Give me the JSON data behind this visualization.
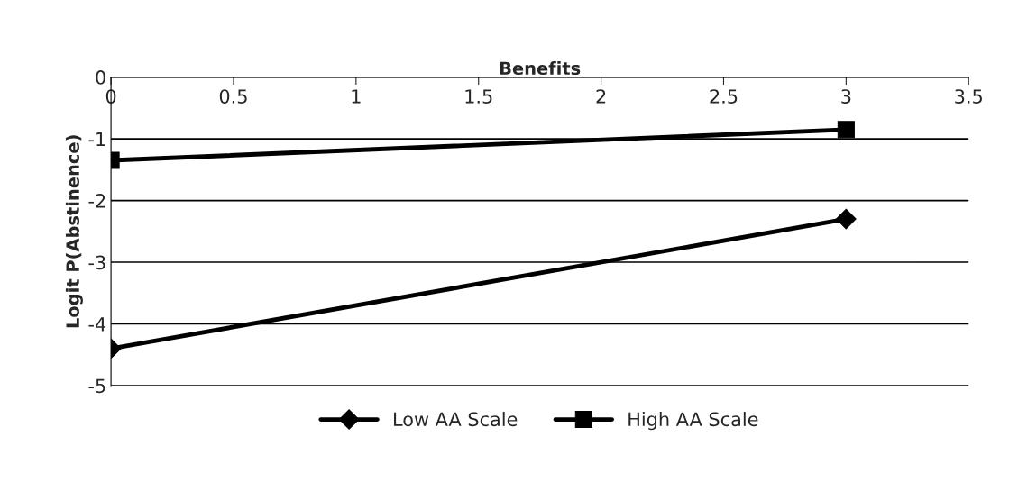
{
  "chart_data": {
    "type": "line",
    "xlabel": "Benefits",
    "ylabel": "Logit P(Abstinence)",
    "x": [
      0,
      3
    ],
    "series": [
      {
        "name": "Low AA Scale",
        "color": "#000000",
        "values": [
          -4.4,
          -2.3
        ],
        "marker": "diamond"
      },
      {
        "name": "High AA Scale",
        "color": "#000000",
        "values": [
          -1.35,
          -0.85
        ],
        "marker": "square"
      }
    ],
    "xlim": [
      0,
      3.5
    ],
    "xticks": [
      0,
      0.5,
      1,
      1.5,
      2,
      2.5,
      3,
      3.5
    ],
    "ylim": [
      -5,
      0
    ],
    "yticks": [
      -5,
      -4,
      -3,
      -2,
      -1,
      0
    ],
    "grid": "y",
    "legend": "bottom",
    "line_style": "solid"
  }
}
